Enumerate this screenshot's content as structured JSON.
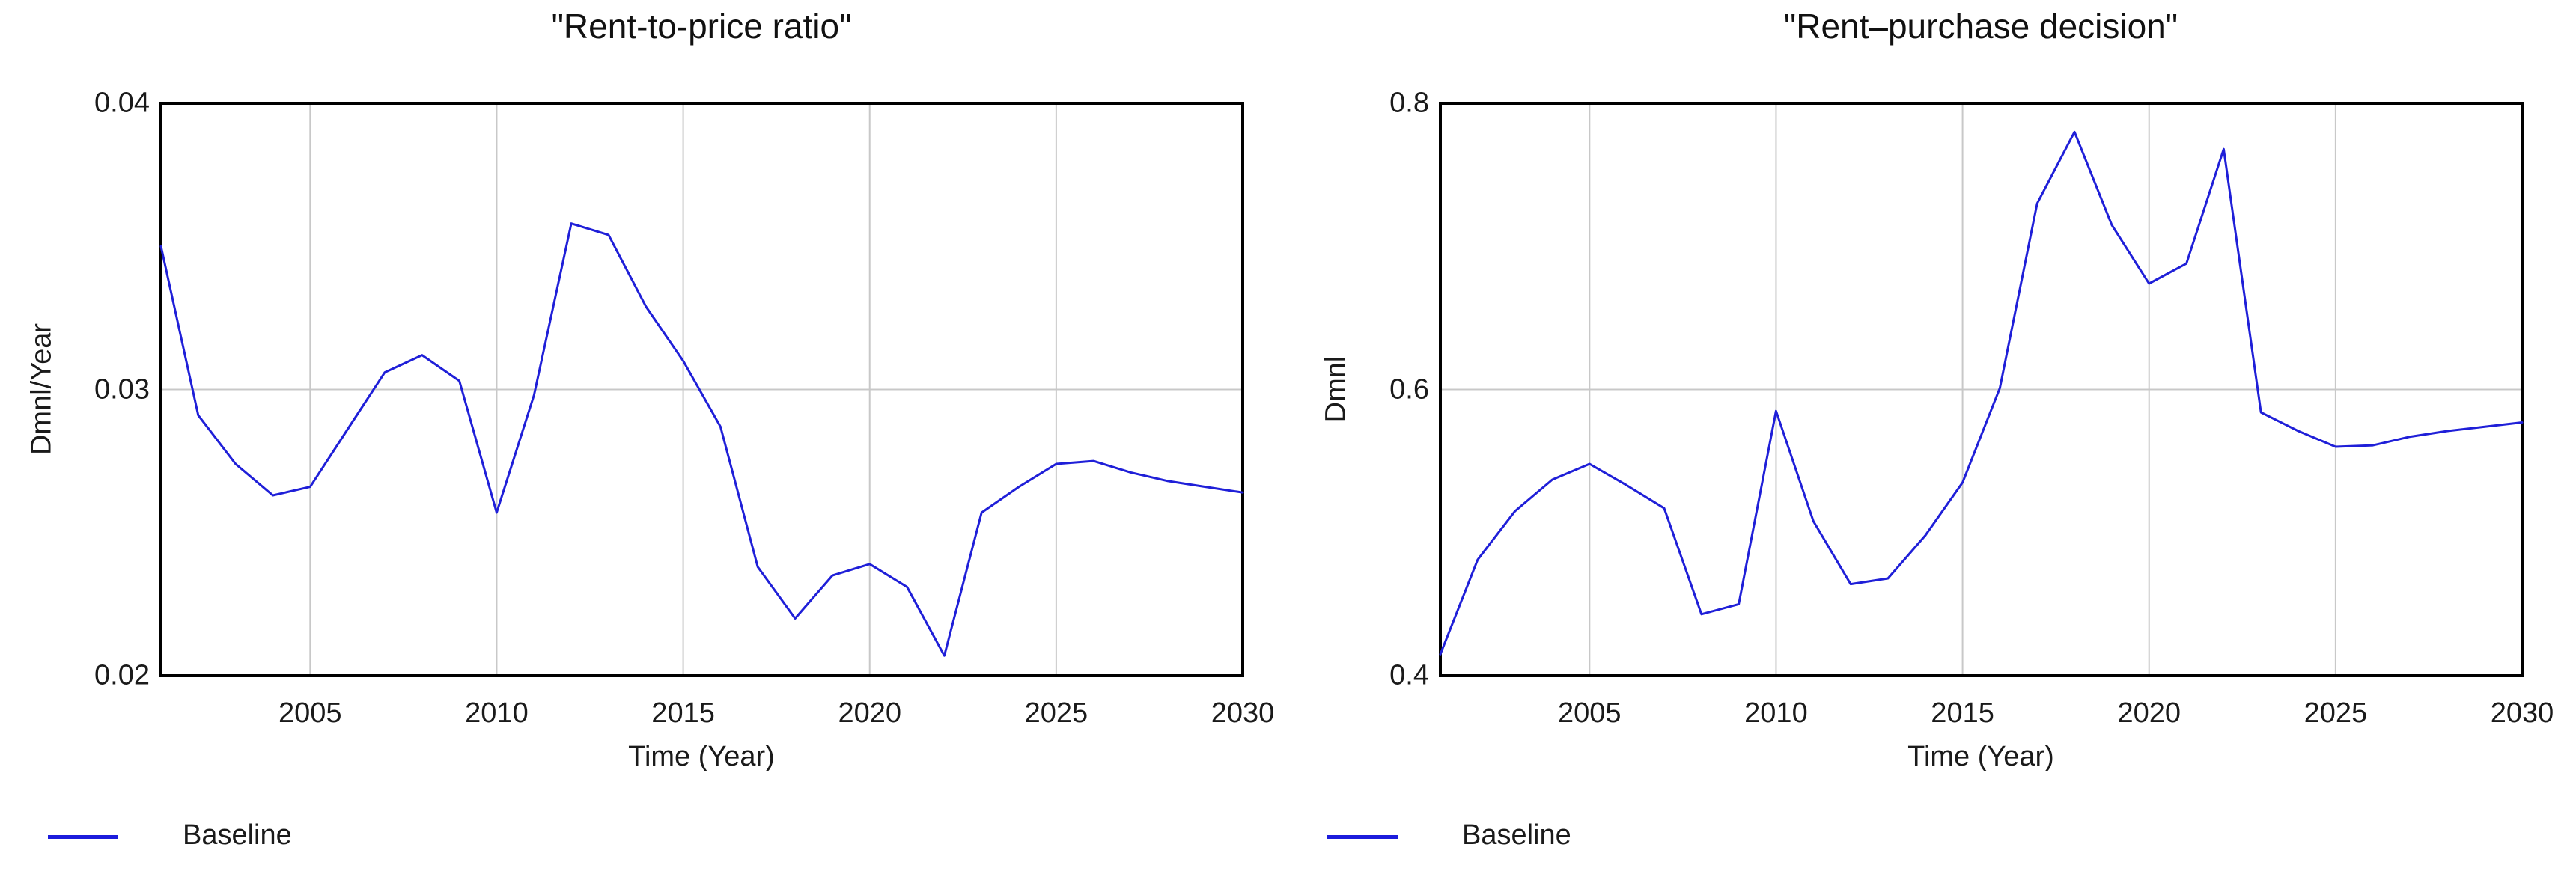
{
  "colors": {
    "line": "#1f1fd8",
    "grid": "#c8c8c8",
    "frame": "#000000",
    "text": "#1a1a1a",
    "background": "#ffffff"
  },
  "chart_data": [
    {
      "type": "line",
      "title": "\"Rent-to-price ratio\"",
      "xlabel": "Time (Year)",
      "ylabel": "Dmnl/Year",
      "x_range": [
        2001,
        2030
      ],
      "y_range": [
        0.02,
        0.04
      ],
      "x_ticks": [
        "2005",
        "2010",
        "2015",
        "2020",
        "2025",
        "2030"
      ],
      "y_ticks": [
        "0.04",
        "0.03",
        "0.02"
      ],
      "grid_y_values": [
        0.03
      ],
      "legend_position": "bottom-left",
      "legend": [
        {
          "label": "Baseline"
        }
      ],
      "series": [
        {
          "name": "Baseline",
          "x": [
            2001,
            2002,
            2003,
            2004,
            2005,
            2006,
            2007,
            2008,
            2009,
            2010,
            2011,
            2012,
            2013,
            2014,
            2015,
            2016,
            2017,
            2018,
            2019,
            2020,
            2021,
            2022,
            2023,
            2024,
            2025,
            2026,
            2027,
            2028,
            2029,
            2030
          ],
          "values": [
            0.035,
            0.0291,
            0.0274,
            0.0263,
            0.0266,
            0.0286,
            0.0306,
            0.0312,
            0.0303,
            0.0257,
            0.0298,
            0.0358,
            0.0354,
            0.0329,
            0.031,
            0.0287,
            0.0238,
            0.022,
            0.0235,
            0.0239,
            0.0231,
            0.0207,
            0.0257,
            0.0266,
            0.0274,
            0.0275,
            0.0271,
            0.0268,
            0.0266,
            0.0264
          ]
        }
      ]
    },
    {
      "type": "line",
      "title": "\"Rent–purchase decision\"",
      "xlabel": "Time (Year)",
      "ylabel": "Dmnl",
      "x_range": [
        2001,
        2030
      ],
      "y_range": [
        0.4,
        0.8
      ],
      "x_ticks": [
        "2005",
        "2010",
        "2015",
        "2020",
        "2025",
        "2030"
      ],
      "y_ticks": [
        "0.8",
        "0.6",
        "0.4"
      ],
      "grid_y_values": [
        0.6
      ],
      "legend_position": "bottom-left",
      "legend": [
        {
          "label": "Baseline"
        }
      ],
      "series": [
        {
          "name": "Baseline",
          "x": [
            2001,
            2002,
            2003,
            2004,
            2005,
            2006,
            2007,
            2008,
            2009,
            2010,
            2011,
            2012,
            2013,
            2014,
            2015,
            2016,
            2017,
            2018,
            2019,
            2020,
            2021,
            2022,
            2023,
            2024,
            2025,
            2026,
            2027,
            2028,
            2029,
            2030
          ],
          "values": [
            0.415,
            0.481,
            0.515,
            0.537,
            0.548,
            0.533,
            0.517,
            0.443,
            0.45,
            0.585,
            0.508,
            0.464,
            0.468,
            0.498,
            0.535,
            0.601,
            0.73,
            0.78,
            0.715,
            0.674,
            0.688,
            0.768,
            0.584,
            0.571,
            0.56,
            0.561,
            0.567,
            0.571,
            0.574,
            0.577
          ]
        }
      ]
    }
  ]
}
